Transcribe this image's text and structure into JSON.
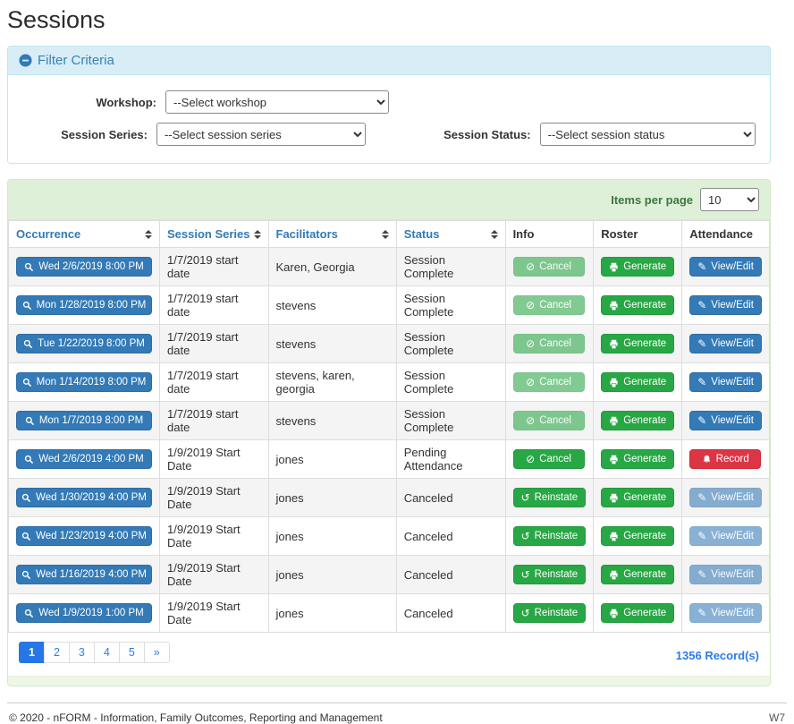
{
  "page_title": "Sessions",
  "filter": {
    "title": "Filter Criteria",
    "workshop_label": "Workshop:",
    "workshop_value": "--Select workshop",
    "session_series_label": "Session Series:",
    "session_series_value": "--Select session series",
    "session_status_label": "Session Status:",
    "session_status_value": "--Select session status"
  },
  "grid": {
    "items_per_page_label": "Items per page",
    "items_per_page_value": "10",
    "occurrence_icon": "search-icon",
    "columns": [
      {
        "label": "Occurrence",
        "sortable": true
      },
      {
        "label": "Session Series",
        "sortable": true
      },
      {
        "label": "Facilitators",
        "sortable": true
      },
      {
        "label": "Status",
        "sortable": true
      },
      {
        "label": "Info",
        "sortable": false
      },
      {
        "label": "Roster",
        "sortable": false
      },
      {
        "label": "Attendance",
        "sortable": false
      }
    ],
    "rows": [
      {
        "occurrence": "Wed 2/6/2019 8:00 PM",
        "session_series": "1/7/2019 start date",
        "facilitators": "Karen, Georgia",
        "status": "Session Complete",
        "info_button": {
          "label": "Cancel",
          "icon": "ban-icon",
          "style": "success",
          "disabled": true
        },
        "roster_button": {
          "label": "Generate",
          "icon": "printer-icon",
          "style": "success",
          "disabled": false
        },
        "attendance_button": {
          "label": "View/Edit",
          "icon": "pencil-icon",
          "style": "primary",
          "disabled": false
        }
      },
      {
        "occurrence": "Mon 1/28/2019 8:00 PM",
        "session_series": "1/7/2019 start date",
        "facilitators": "stevens",
        "status": "Session Complete",
        "info_button": {
          "label": "Cancel",
          "icon": "ban-icon",
          "style": "success",
          "disabled": true
        },
        "roster_button": {
          "label": "Generate",
          "icon": "printer-icon",
          "style": "success",
          "disabled": false
        },
        "attendance_button": {
          "label": "View/Edit",
          "icon": "pencil-icon",
          "style": "primary",
          "disabled": false
        }
      },
      {
        "occurrence": "Tue 1/22/2019 8:00 PM",
        "session_series": "1/7/2019 start date",
        "facilitators": "stevens",
        "status": "Session Complete",
        "info_button": {
          "label": "Cancel",
          "icon": "ban-icon",
          "style": "success",
          "disabled": true
        },
        "roster_button": {
          "label": "Generate",
          "icon": "printer-icon",
          "style": "success",
          "disabled": false
        },
        "attendance_button": {
          "label": "View/Edit",
          "icon": "pencil-icon",
          "style": "primary",
          "disabled": false
        }
      },
      {
        "occurrence": "Mon 1/14/2019 8:00 PM",
        "session_series": "1/7/2019 start date",
        "facilitators": "stevens, karen, georgia",
        "status": "Session Complete",
        "info_button": {
          "label": "Cancel",
          "icon": "ban-icon",
          "style": "success",
          "disabled": true
        },
        "roster_button": {
          "label": "Generate",
          "icon": "printer-icon",
          "style": "success",
          "disabled": false
        },
        "attendance_button": {
          "label": "View/Edit",
          "icon": "pencil-icon",
          "style": "primary",
          "disabled": false
        }
      },
      {
        "occurrence": "Mon 1/7/2019 8:00 PM",
        "session_series": "1/7/2019 start date",
        "facilitators": "stevens",
        "status": "Session Complete",
        "info_button": {
          "label": "Cancel",
          "icon": "ban-icon",
          "style": "success",
          "disabled": true
        },
        "roster_button": {
          "label": "Generate",
          "icon": "printer-icon",
          "style": "success",
          "disabled": false
        },
        "attendance_button": {
          "label": "View/Edit",
          "icon": "pencil-icon",
          "style": "primary",
          "disabled": false
        }
      },
      {
        "occurrence": "Wed 2/6/2019 4:00 PM",
        "session_series": "1/9/2019 Start Date",
        "facilitators": "jones",
        "status": "Pending Attendance",
        "info_button": {
          "label": "Cancel",
          "icon": "ban-icon",
          "style": "success",
          "disabled": false
        },
        "roster_button": {
          "label": "Generate",
          "icon": "printer-icon",
          "style": "success",
          "disabled": false
        },
        "attendance_button": {
          "label": "Record",
          "icon": "bell-icon",
          "style": "danger",
          "disabled": false
        }
      },
      {
        "occurrence": "Wed 1/30/2019 4:00 PM",
        "session_series": "1/9/2019 Start Date",
        "facilitators": "jones",
        "status": "Canceled",
        "info_button": {
          "label": "Reinstate",
          "icon": "undo-icon",
          "style": "success",
          "disabled": false
        },
        "roster_button": {
          "label": "Generate",
          "icon": "printer-icon",
          "style": "success",
          "disabled": false
        },
        "attendance_button": {
          "label": "View/Edit",
          "icon": "pencil-icon",
          "style": "primary",
          "disabled": true
        }
      },
      {
        "occurrence": "Wed 1/23/2019 4:00 PM",
        "session_series": "1/9/2019 Start Date",
        "facilitators": "jones",
        "status": "Canceled",
        "info_button": {
          "label": "Reinstate",
          "icon": "undo-icon",
          "style": "success",
          "disabled": false
        },
        "roster_button": {
          "label": "Generate",
          "icon": "printer-icon",
          "style": "success",
          "disabled": false
        },
        "attendance_button": {
          "label": "View/Edit",
          "icon": "pencil-icon",
          "style": "primary",
          "disabled": true
        }
      },
      {
        "occurrence": "Wed 1/16/2019 4:00 PM",
        "session_series": "1/9/2019 Start Date",
        "facilitators": "jones",
        "status": "Canceled",
        "info_button": {
          "label": "Reinstate",
          "icon": "undo-icon",
          "style": "success",
          "disabled": false
        },
        "roster_button": {
          "label": "Generate",
          "icon": "printer-icon",
          "style": "success",
          "disabled": false
        },
        "attendance_button": {
          "label": "View/Edit",
          "icon": "pencil-icon",
          "style": "primary",
          "disabled": true
        }
      },
      {
        "occurrence": "Wed 1/9/2019 1:00 PM",
        "session_series": "1/9/2019 Start Date",
        "facilitators": "jones",
        "status": "Canceled",
        "info_button": {
          "label": "Reinstate",
          "icon": "undo-icon",
          "style": "success",
          "disabled": false
        },
        "roster_button": {
          "label": "Generate",
          "icon": "printer-icon",
          "style": "success",
          "disabled": false
        },
        "attendance_button": {
          "label": "View/Edit",
          "icon": "pencil-icon",
          "style": "primary",
          "disabled": true
        }
      }
    ],
    "pagination": [
      {
        "label": "1",
        "active": true
      },
      {
        "label": "2",
        "active": false
      },
      {
        "label": "3",
        "active": false
      },
      {
        "label": "4",
        "active": false
      },
      {
        "label": "5",
        "active": false
      },
      {
        "label": "»",
        "active": false
      }
    ],
    "records_text": "1356 Record(s)"
  },
  "icons_unicode": {
    "ban-icon": "⊘",
    "undo-icon": "↺",
    "pencil-icon": "✎"
  },
  "colors": {
    "primary_blue": "#337ab7",
    "success_green": "#28a745",
    "danger_red": "#dc3545",
    "filter_header_bg": "#d9edf7",
    "filter_border": "#bce8f1",
    "grid_band_bg": "#dff0d8",
    "grid_border": "#d6e9c6",
    "band_text_green": "#3c763d",
    "link_blue": "#2b7de9"
  },
  "footer": {
    "copyright": "© 2020 - nFORM - Information, Family Outcomes, Reporting and Management",
    "environment": "W7"
  }
}
